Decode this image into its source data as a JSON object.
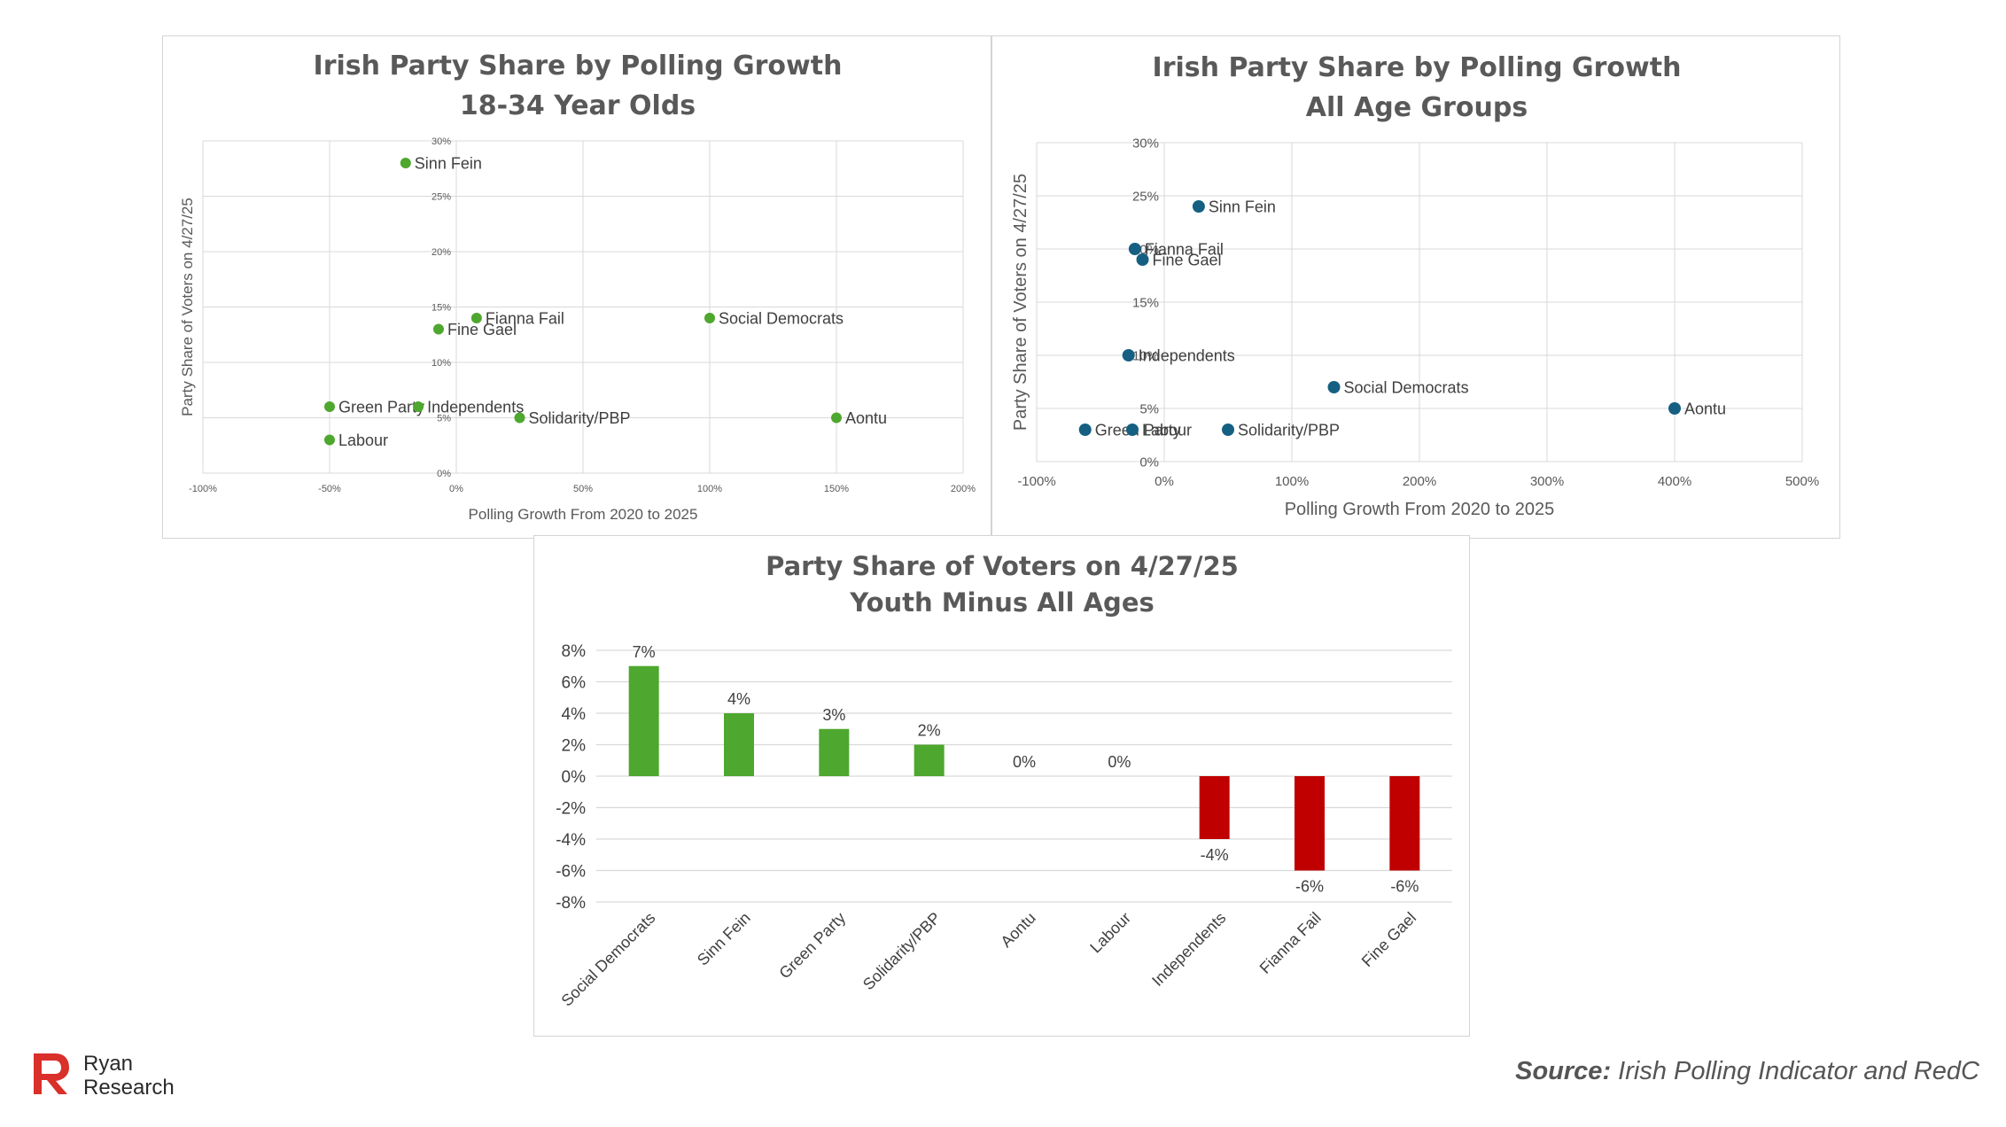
{
  "colors": {
    "green": "#4ea72e",
    "navy": "#156082",
    "red": "#c00000",
    "grid": "#d9d9d9",
    "logo_red": "#d9302a"
  },
  "branding": {
    "logo_name": "Ryan",
    "logo_sub": "Research",
    "logo_icon": "ryan-r-logo-icon"
  },
  "source": {
    "label": "Source:",
    "text": "Irish Polling Indicator and RedC"
  },
  "chart_data": [
    {
      "type": "scatter",
      "title_lines": [
        "Irish Party Share by Polling Growth",
        "18-34 Year Olds"
      ],
      "xlabel": "Polling Growth From 2020 to 2025",
      "ylabel": "Party Share of Voters on 4/27/25",
      "xlim": [
        -100,
        200
      ],
      "ylim": [
        0,
        30
      ],
      "xticks": [
        -100,
        -50,
        0,
        50,
        100,
        150,
        200
      ],
      "yticks": [
        0,
        5,
        10,
        15,
        20,
        25,
        30
      ],
      "x_tick_labels": [
        "-100%",
        "-50%",
        "0%",
        "50%",
        "100%",
        "150%",
        "200%"
      ],
      "y_tick_labels": [
        "0%",
        "5%",
        "10%",
        "15%",
        "20%",
        "25%",
        "30%"
      ],
      "grid": true,
      "marker_color": "#4ea72e",
      "points": [
        {
          "label": "Sinn Fein",
          "x": -20,
          "y": 28
        },
        {
          "label": "Fianna Fail",
          "x": 8,
          "y": 14
        },
        {
          "label": "Fine Gael",
          "x": -7,
          "y": 13
        },
        {
          "label": "Social Democrats",
          "x": 100,
          "y": 14
        },
        {
          "label": "Green Party",
          "x": -50,
          "y": 6
        },
        {
          "label": "Independents",
          "x": -15,
          "y": 6
        },
        {
          "label": "Solidarity/PBP",
          "x": 25,
          "y": 5
        },
        {
          "label": "Aontu",
          "x": 150,
          "y": 5
        },
        {
          "label": "Labour",
          "x": -50,
          "y": 3
        }
      ]
    },
    {
      "type": "scatter",
      "title_lines": [
        "Irish Party Share by Polling Growth",
        "All Age Groups"
      ],
      "xlabel": "Polling Growth From 2020 to 2025",
      "ylabel": "Party Share of Voters on 4/27/25",
      "xlim": [
        -100,
        500
      ],
      "ylim": [
        0,
        30
      ],
      "xticks": [
        -100,
        0,
        100,
        200,
        300,
        400,
        500
      ],
      "yticks": [
        0,
        5,
        10,
        15,
        20,
        25,
        30
      ],
      "x_tick_labels": [
        "-100%",
        "0%",
        "100%",
        "200%",
        "300%",
        "400%",
        "500%"
      ],
      "y_tick_labels": [
        "0%",
        "5%",
        "10%",
        "15%",
        "20%",
        "25%",
        "30%"
      ],
      "grid": true,
      "marker_color": "#156082",
      "points": [
        {
          "label": "Sinn Fein",
          "x": 27,
          "y": 24
        },
        {
          "label": "Fianna Fail",
          "x": -23,
          "y": 20
        },
        {
          "label": "Fine Gael",
          "x": -17,
          "y": 19
        },
        {
          "label": "Independents",
          "x": -28,
          "y": 10
        },
        {
          "label": "Social Democrats",
          "x": 133,
          "y": 7
        },
        {
          "label": "Aontu",
          "x": 400,
          "y": 5
        },
        {
          "label": "Green Party",
          "x": -62,
          "y": 3
        },
        {
          "label": "Labour",
          "x": -25,
          "y": 3
        },
        {
          "label": "Solidarity/PBP",
          "x": 50,
          "y": 3
        }
      ]
    },
    {
      "type": "bar",
      "title_lines": [
        "Party Share of Voters on 4/27/25",
        "Youth Minus All Ages"
      ],
      "xlabel": "",
      "ylabel": "",
      "ylim": [
        -8,
        8
      ],
      "yticks": [
        -8,
        -6,
        -4,
        -2,
        0,
        2,
        4,
        6,
        8
      ],
      "y_tick_labels": [
        "-8%",
        "-6%",
        "-4%",
        "-2%",
        "0%",
        "2%",
        "4%",
        "6%",
        "8%"
      ],
      "grid": true,
      "categories": [
        "Social Democrats",
        "Sinn Fein",
        "Green Party",
        "Solidarity/PBP",
        "Aontu",
        "Labour",
        "Independents",
        "Fianna Fail",
        "Fine Gael"
      ],
      "values": [
        7,
        4,
        3,
        2,
        0,
        0,
        -4,
        -6,
        -6
      ],
      "data_labels": [
        "7%",
        "4%",
        "3%",
        "2%",
        "0%",
        "0%",
        "-4%",
        "-6%",
        "-6%"
      ],
      "positive_color": "#4ea72e",
      "negative_color": "#c00000"
    }
  ]
}
